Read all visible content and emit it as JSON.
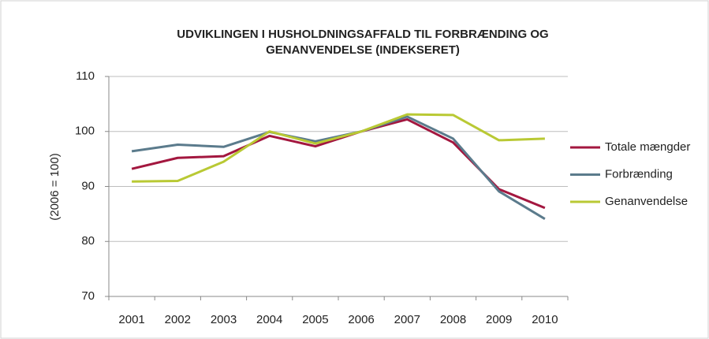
{
  "chart_data": {
    "type": "line",
    "title": [
      "UDVIKLINGEN I HUSHOLDNINGSAFFALD TIL FORBRÆNDING OG",
      "GENANVENDELSE (INDEKSERET)"
    ],
    "y_label": "(2006 = 100)",
    "categories": [
      "2001",
      "2002",
      "2003",
      "2004",
      "2005",
      "2006",
      "2007",
      "2008",
      "2009",
      "2010"
    ],
    "series": [
      {
        "name": "Totale mængder",
        "color": "#a3173f",
        "values": [
          93.2,
          95.2,
          95.5,
          99.2,
          97.3,
          100,
          102.2,
          98,
          89.5,
          86.1
        ]
      },
      {
        "name": "Forbrænding",
        "color": "#5b7b8c",
        "values": [
          96.4,
          97.6,
          97.2,
          99.9,
          98.2,
          100,
          102.7,
          98.7,
          89.1,
          84.1
        ]
      },
      {
        "name": "Genanvendelse",
        "color": "#b9c934",
        "values": [
          90.9,
          91.0,
          94.5,
          100.0,
          97.8,
          100,
          103.1,
          103.0,
          98.4,
          98.7
        ]
      }
    ],
    "ylim": [
      70,
      110
    ],
    "yticks": [
      70,
      80,
      90,
      100,
      110
    ],
    "grid": true,
    "legend": "right"
  }
}
